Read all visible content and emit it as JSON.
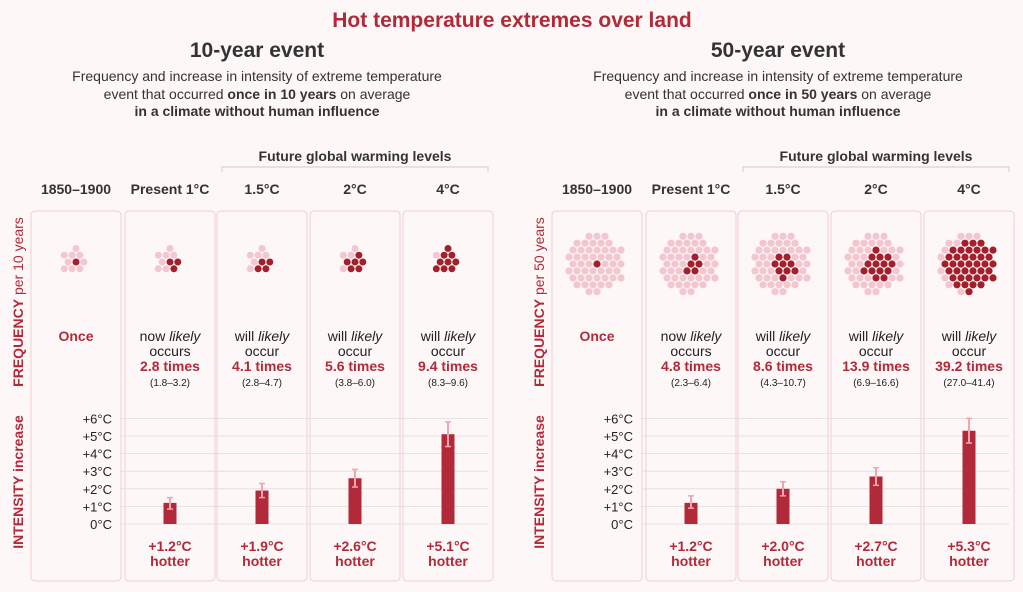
{
  "title": "Hot temperature extremes over land",
  "future_header": "Future global warming levels",
  "column_labels": [
    "1850–1900",
    "Present 1°C",
    "1.5°C",
    "2°C",
    "4°C"
  ],
  "frequency_axis": {
    "bold": "FREQUENCY",
    "rest_template": " per {n} years"
  },
  "intensity_axis": "INTENSITY increase",
  "y_tick_labels": [
    "0°C",
    "+1°C",
    "+2°C",
    "+3°C",
    "+4°C",
    "+5°C",
    "+6°C"
  ],
  "colors": {
    "accent": "#b22a39",
    "dot_light": "#f4c6cf",
    "dot_dark": "#a41f2c",
    "error_bar": "#f0a5b0",
    "panel_border": "#f1cdd2",
    "grid": "#dddddd"
  },
  "word_now": "now",
  "word_will": "will",
  "word_likely": "likely",
  "word_occurs": "occurs",
  "word_occur": "occur",
  "word_once": "Once",
  "word_hotter": "hotter",
  "panels": [
    {
      "heading": "10-year event",
      "subtitle": {
        "line1": "Frequency and increase in intensity of extreme temperature",
        "line2_pre": "event that occurred ",
        "line2_bold": "once in 10 years",
        "line2_post": " on average",
        "line3_bold": "in a climate without human influence"
      },
      "period": 10,
      "freq_label_rest": " per 10 years"
    },
    {
      "heading": "50-year event",
      "subtitle": {
        "line1": "Frequency and increase in intensity of extreme temperature",
        "line2_pre": "event that occurred ",
        "line2_bold": "once in 50 years",
        "line2_post": " on average",
        "line3_bold": "in a climate without human influence"
      },
      "period": 50,
      "freq_label_rest": " per 50 years"
    }
  ],
  "chart_data": [
    {
      "type": "bar",
      "title": "10-year event",
      "categories": [
        "1850–1900",
        "Present 1°C",
        "1.5°C",
        "2°C",
        "4°C"
      ],
      "frequency_times": [
        1,
        2.8,
        4.1,
        5.6,
        9.4
      ],
      "frequency_labels": [
        "Once",
        "2.8 times",
        "4.1 times",
        "5.6 times",
        "9.4 times"
      ],
      "frequency_ranges": [
        "",
        "(1.8–3.2)",
        "(2.8–4.7)",
        "(3.8–6.0)",
        "(8.3–9.6)"
      ],
      "intensity_values": [
        0,
        1.2,
        1.9,
        2.6,
        5.1
      ],
      "intensity_error": [
        null,
        [
          0.85,
          1.5
        ],
        [
          1.5,
          2.3
        ],
        [
          2.1,
          3.1
        ],
        [
          4.4,
          5.8
        ]
      ],
      "intensity_labels": [
        "",
        "+1.2°C",
        "+1.9°C",
        "+2.6°C",
        "+5.1°C"
      ],
      "ylabel": "INTENSITY increase",
      "ylim": [
        0,
        6
      ]
    },
    {
      "type": "bar",
      "title": "50-year event",
      "categories": [
        "1850–1900",
        "Present 1°C",
        "1.5°C",
        "2°C",
        "4°C"
      ],
      "frequency_times": [
        1,
        4.8,
        8.6,
        13.9,
        39.2
      ],
      "frequency_labels": [
        "Once",
        "4.8 times",
        "8.6 times",
        "13.9 times",
        "39.2 times"
      ],
      "frequency_ranges": [
        "",
        "(2.3–6.4)",
        "(4.3–10.7)",
        "(6.9–16.6)",
        "(27.0–41.4)"
      ],
      "intensity_values": [
        0,
        1.2,
        2.0,
        2.7,
        5.3
      ],
      "intensity_error": [
        null,
        [
          0.9,
          1.6
        ],
        [
          1.6,
          2.4
        ],
        [
          2.2,
          3.2
        ],
        [
          4.6,
          6.0
        ]
      ],
      "intensity_labels": [
        "",
        "+1.2°C",
        "+2.0°C",
        "+2.7°C",
        "+5.3°C"
      ],
      "ylabel": "INTENSITY increase",
      "ylim": [
        0,
        6
      ]
    }
  ]
}
